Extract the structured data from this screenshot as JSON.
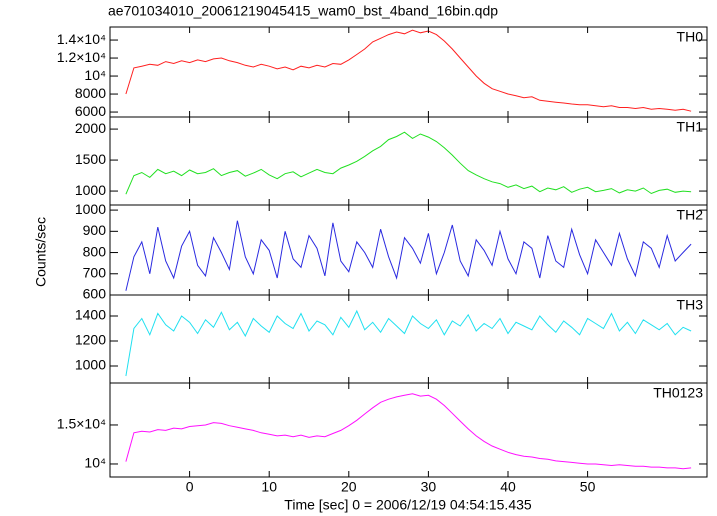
{
  "chart_data": [
    {
      "type": "line",
      "title": "ae701034010_20061219045415_wam0_bst_4band_16bin.qdp",
      "x": [
        -8,
        -7,
        -6,
        -5,
        -4,
        -3,
        -2,
        -1,
        0,
        1,
        2,
        3,
        4,
        5,
        6,
        7,
        8,
        9,
        10,
        11,
        12,
        13,
        14,
        15,
        16,
        17,
        18,
        19,
        20,
        21,
        22,
        23,
        24,
        25,
        26,
        27,
        28,
        29,
        30,
        31,
        32,
        33,
        34,
        35,
        36,
        37,
        38,
        39,
        40,
        41,
        42,
        43,
        44,
        45,
        46,
        47,
        48,
        49,
        50,
        51,
        52,
        53,
        54,
        55,
        56,
        57,
        58,
        59,
        60,
        61,
        62,
        63
      ],
      "xlim": [
        -10,
        65
      ],
      "ylim": [
        5450,
        15450
      ],
      "yticks": [
        6000,
        8000,
        {
          "value": 10000,
          "label": "10⁴"
        },
        {
          "value": 12000,
          "label": "1.2×10⁴"
        },
        {
          "value": 14000,
          "label": "1.4×10⁴"
        }
      ],
      "series": [
        {
          "name": "TH0",
          "color": "#ff2020",
          "values": [
            8000,
            10900,
            11100,
            11300,
            11200,
            11600,
            11400,
            11700,
            11500,
            11800,
            11600,
            11900,
            12000,
            11700,
            11500,
            11200,
            11000,
            11300,
            11100,
            10800,
            11000,
            10700,
            11100,
            10900,
            11200,
            11000,
            11400,
            11300,
            11800,
            12400,
            13000,
            13800,
            14200,
            14600,
            14900,
            14700,
            15100,
            14800,
            15000,
            14600,
            13900,
            13000,
            12000,
            11000,
            10000,
            9200,
            8600,
            8300,
            8000,
            7800,
            7600,
            7700,
            7300,
            7200,
            7100,
            7000,
            6900,
            6800,
            6800,
            6700,
            6600,
            6700,
            6500,
            6500,
            6400,
            6500,
            6300,
            6400,
            6300,
            6200,
            6300,
            6100
          ]
        }
      ]
    },
    {
      "type": "line",
      "x": [
        -8,
        -7,
        -6,
        -5,
        -4,
        -3,
        -2,
        -1,
        0,
        1,
        2,
        3,
        4,
        5,
        6,
        7,
        8,
        9,
        10,
        11,
        12,
        13,
        14,
        15,
        16,
        17,
        18,
        19,
        20,
        21,
        22,
        23,
        24,
        25,
        26,
        27,
        28,
        29,
        30,
        31,
        32,
        33,
        34,
        35,
        36,
        37,
        38,
        39,
        40,
        41,
        42,
        43,
        44,
        45,
        46,
        47,
        48,
        49,
        50,
        51,
        52,
        53,
        54,
        55,
        56,
        57,
        58,
        59,
        60,
        61,
        62,
        63
      ],
      "xlim": [
        -10,
        65
      ],
      "ylim": [
        775,
        2195
      ],
      "yticks": [
        1000,
        1500,
        2000
      ],
      "series": [
        {
          "name": "TH1",
          "color": "#22e022",
          "values": [
            950,
            1250,
            1300,
            1220,
            1350,
            1280,
            1320,
            1250,
            1340,
            1280,
            1300,
            1360,
            1250,
            1300,
            1330,
            1240,
            1290,
            1350,
            1260,
            1200,
            1280,
            1310,
            1230,
            1290,
            1350,
            1300,
            1280,
            1370,
            1420,
            1480,
            1560,
            1650,
            1720,
            1830,
            1880,
            1950,
            1850,
            1920,
            1870,
            1800,
            1700,
            1580,
            1450,
            1330,
            1260,
            1200,
            1150,
            1120,
            1060,
            1100,
            1040,
            1080,
            990,
            1050,
            1020,
            1070,
            980,
            1030,
            1060,
            990,
            1010,
            1040,
            970,
            1020,
            1000,
            1050,
            960,
            1010,
            1030,
            980,
            1000,
            990
          ]
        }
      ]
    },
    {
      "type": "line",
      "ylabel": "Counts/sec",
      "x": [
        -8,
        -7,
        -6,
        -5,
        -4,
        -3,
        -2,
        -1,
        0,
        1,
        2,
        3,
        4,
        5,
        6,
        7,
        8,
        9,
        10,
        11,
        12,
        13,
        14,
        15,
        16,
        17,
        18,
        19,
        20,
        21,
        22,
        23,
        24,
        25,
        26,
        27,
        28,
        29,
        30,
        31,
        32,
        33,
        34,
        35,
        36,
        37,
        38,
        39,
        40,
        41,
        42,
        43,
        44,
        45,
        46,
        47,
        48,
        49,
        50,
        51,
        52,
        53,
        54,
        55,
        56,
        57,
        58,
        59,
        60,
        61,
        62,
        63
      ],
      "xlim": [
        -10,
        65
      ],
      "ylim": [
        600,
        1024
      ],
      "yticks": [
        600,
        700,
        800,
        900,
        1000
      ],
      "series": [
        {
          "name": "TH2",
          "color": "#2a2ae0",
          "values": [
            620,
            780,
            850,
            700,
            920,
            760,
            680,
            830,
            900,
            740,
            690,
            870,
            800,
            720,
            950,
            780,
            700,
            860,
            810,
            680,
            900,
            770,
            730,
            880,
            820,
            690,
            940,
            760,
            710,
            850,
            800,
            730,
            910,
            780,
            680,
            870,
            820,
            750,
            890,
            700,
            800,
            930,
            760,
            690,
            860,
            810,
            740,
            900,
            770,
            700,
            850,
            820,
            680,
            880,
            760,
            730,
            910,
            790,
            700,
            860,
            800,
            740,
            890,
            770,
            690,
            850,
            820,
            730,
            880,
            760,
            800,
            840
          ]
        }
      ]
    },
    {
      "type": "line",
      "x": [
        -8,
        -7,
        -6,
        -5,
        -4,
        -3,
        -2,
        -1,
        0,
        1,
        2,
        3,
        4,
        5,
        6,
        7,
        8,
        9,
        10,
        11,
        12,
        13,
        14,
        15,
        16,
        17,
        18,
        19,
        20,
        21,
        22,
        23,
        24,
        25,
        26,
        27,
        28,
        29,
        30,
        31,
        32,
        33,
        34,
        35,
        36,
        37,
        38,
        39,
        40,
        41,
        42,
        43,
        44,
        45,
        46,
        47,
        48,
        49,
        50,
        51,
        52,
        53,
        54,
        55,
        56,
        57,
        58,
        59,
        60,
        61,
        62,
        63
      ],
      "xlim": [
        -10,
        65
      ],
      "ylim": [
        864,
        1568
      ],
      "yticks": [
        1000,
        1200,
        1400
      ],
      "series": [
        {
          "name": "TH3",
          "color": "#20e0f0",
          "values": [
            920,
            1300,
            1380,
            1250,
            1420,
            1330,
            1280,
            1400,
            1350,
            1260,
            1370,
            1310,
            1430,
            1290,
            1350,
            1240,
            1380,
            1320,
            1270,
            1400,
            1340,
            1300,
            1420,
            1280,
            1360,
            1330,
            1250,
            1390,
            1310,
            1440,
            1290,
            1350,
            1270,
            1380,
            1320,
            1260,
            1400,
            1340,
            1300,
            1370,
            1250,
            1360,
            1320,
            1410,
            1280,
            1340,
            1300,
            1380,
            1260,
            1350,
            1320,
            1290,
            1400,
            1330,
            1270,
            1360,
            1310,
            1250,
            1380,
            1340,
            1300,
            1420,
            1280,
            1350,
            1260,
            1370,
            1330,
            1290,
            1340,
            1250,
            1310,
            1280
          ]
        }
      ]
    },
    {
      "type": "line",
      "xlabel": "Time [sec] 0 = 2006/12/19 04:54:15.435",
      "x": [
        -8,
        -7,
        -6,
        -5,
        -4,
        -3,
        -2,
        -1,
        0,
        1,
        2,
        3,
        4,
        5,
        6,
        7,
        8,
        9,
        10,
        11,
        12,
        13,
        14,
        15,
        16,
        17,
        18,
        19,
        20,
        21,
        22,
        23,
        24,
        25,
        26,
        27,
        28,
        29,
        30,
        31,
        32,
        33,
        34,
        35,
        36,
        37,
        38,
        39,
        40,
        41,
        42,
        43,
        44,
        45,
        46,
        47,
        48,
        49,
        50,
        51,
        52,
        53,
        54,
        55,
        56,
        57,
        58,
        59,
        60,
        61,
        62,
        63
      ],
      "xlim": [
        -10,
        65
      ],
      "xticks": [
        0,
        10,
        20,
        30,
        40,
        50
      ],
      "ylim": [
        8330,
        20380
      ],
      "yticks": [
        {
          "value": 10000,
          "label": "10⁴"
        },
        {
          "value": 15000,
          "label": "1.5×10⁴"
        }
      ],
      "series": [
        {
          "name": "TH0123",
          "color": "#ff10ff",
          "values": [
            10300,
            14000,
            14200,
            14100,
            14400,
            14300,
            14600,
            14500,
            14800,
            14900,
            15000,
            15300,
            15200,
            14900,
            14700,
            14500,
            14300,
            14000,
            13800,
            13600,
            13700,
            13500,
            13700,
            13400,
            13600,
            13500,
            13900,
            14300,
            14900,
            15600,
            16400,
            17200,
            17900,
            18300,
            18600,
            18800,
            19000,
            18700,
            18800,
            18300,
            17500,
            16500,
            15500,
            14500,
            13600,
            12900,
            12300,
            11900,
            11500,
            11200,
            11000,
            10900,
            10700,
            10600,
            10400,
            10300,
            10200,
            10100,
            10000,
            10000,
            9900,
            9800,
            9900,
            9800,
            9700,
            9700,
            9600,
            9600,
            9500,
            9500,
            9400,
            9500
          ]
        }
      ]
    }
  ]
}
